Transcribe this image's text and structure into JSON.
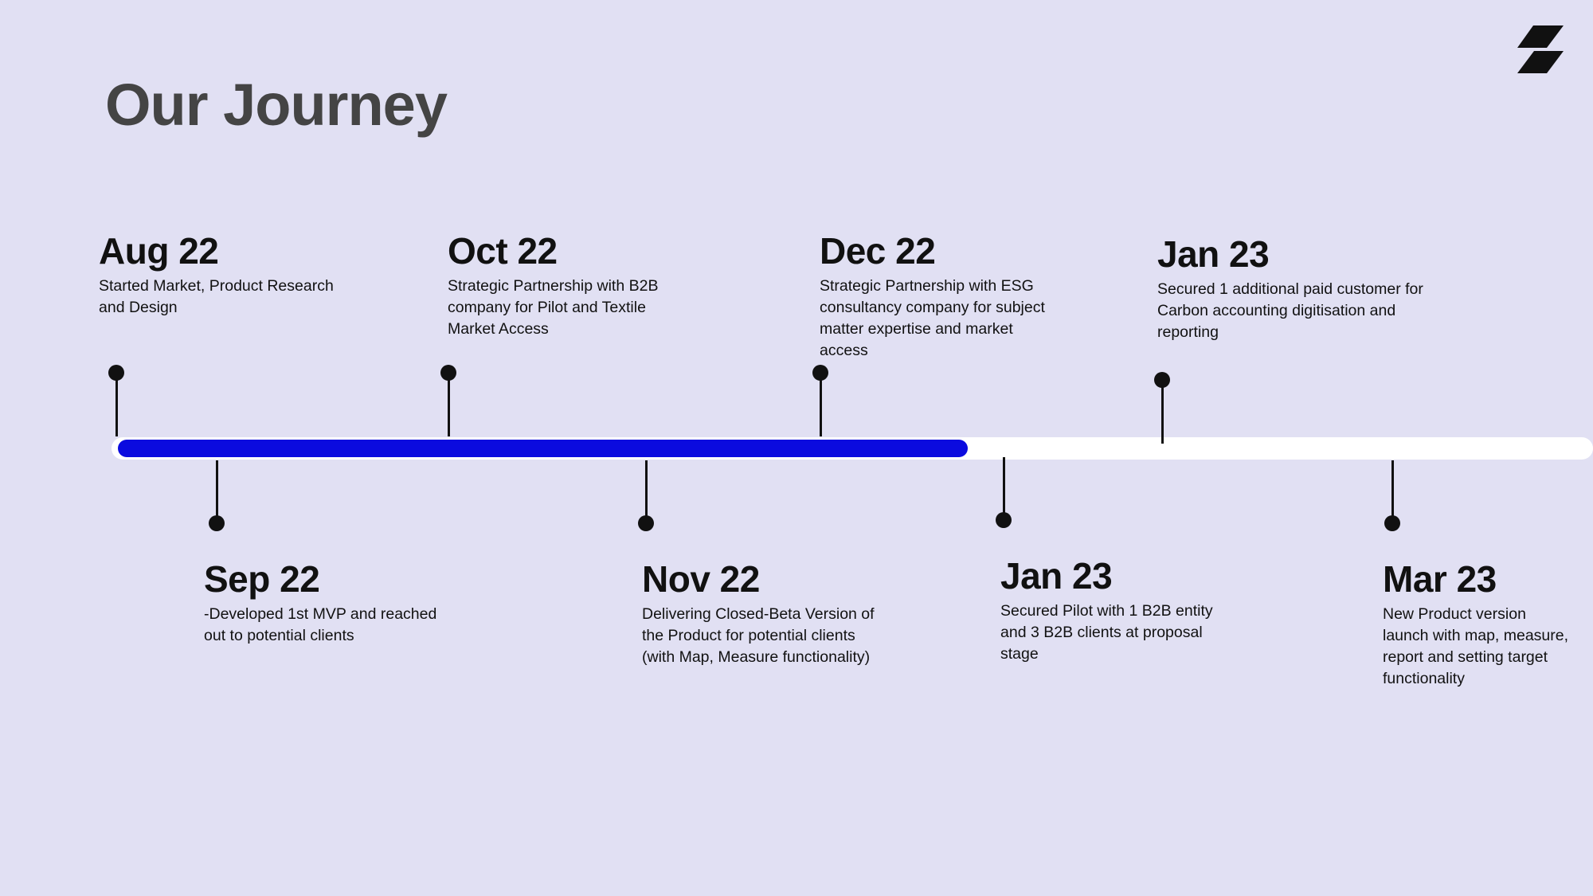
{
  "page": {
    "title": "Our Journey",
    "background_color": "#E1E0F3",
    "logo_icon": "bolt-logo-icon"
  },
  "timeline": {
    "progress_color": "#0B0BDF",
    "track_color": "#FFFFFF",
    "progress_fraction": 0.576,
    "milestones": [
      {
        "date": "Aug 22",
        "text": "Started Market, Product Research and Design",
        "side": "top"
      },
      {
        "date": "Sep 22",
        "text": "-Developed 1st MVP and reached out to potential clients",
        "side": "bottom"
      },
      {
        "date": "Oct 22",
        "text": "Strategic Partnership with B2B company for Pilot and Textile Market Access",
        "side": "top"
      },
      {
        "date": "Nov 22",
        "text": "Delivering Closed-Beta Version of the Product for potential clients (with Map, Measure functionality)",
        "side": "bottom"
      },
      {
        "date": "Dec 22",
        "text": "Strategic Partnership with ESG consultancy company for subject matter expertise and market access",
        "side": "top"
      },
      {
        "date": "Jan 23",
        "text": "Secured Pilot with 1 B2B entity and 3 B2B clients at proposal stage",
        "side": "bottom"
      },
      {
        "date": "Jan 23",
        "text": "Secured 1 additional paid customer for Carbon accounting digitisation and reporting",
        "side": "top"
      },
      {
        "date": "Mar 23",
        "text": "New Product version launch with map, measure, report and setting target functionality",
        "side": "bottom"
      }
    ]
  }
}
